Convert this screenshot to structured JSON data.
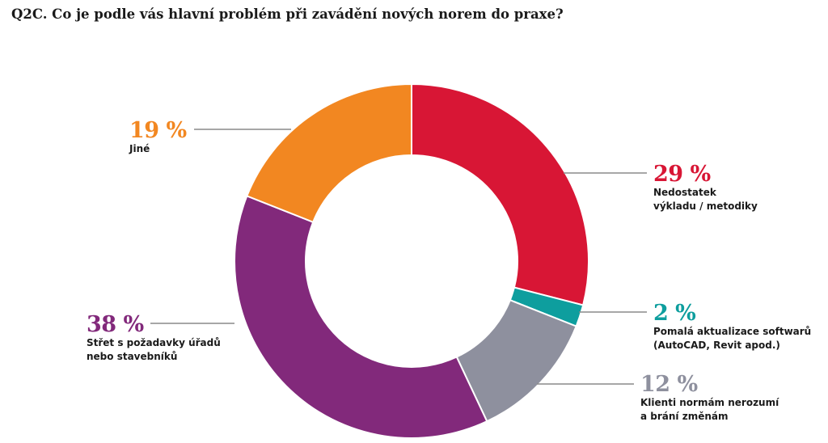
{
  "title": "Q2C. Co je podle vás hlavní problém při zavádění nových norem do praxe?",
  "chart_data": {
    "type": "pie",
    "style": "donut",
    "unit": "%",
    "slices": [
      {
        "value": 29,
        "value_label": "29 %",
        "label_lines": [
          "Nedostatek",
          "výkladu / metodiky"
        ],
        "color": "#d81635"
      },
      {
        "value": 2,
        "value_label": "2 %",
        "label_lines": [
          "Pomalá aktualizace softwarů",
          "(AutoCAD, Revit apod.)"
        ],
        "color": "#0e9e9e"
      },
      {
        "value": 12,
        "value_label": "12 %",
        "label_lines": [
          "Klienti normám nerozumí",
          "a brání změnám"
        ],
        "color": "#8e909e"
      },
      {
        "value": 38,
        "value_label": "38 %",
        "label_lines": [
          "Střet s požadavky úřadů",
          "nebo stavebníků"
        ],
        "color": "#82297b"
      },
      {
        "value": 19,
        "value_label": "19 %",
        "label_lines": [
          "Jiné"
        ],
        "color": "#f28721"
      }
    ]
  }
}
